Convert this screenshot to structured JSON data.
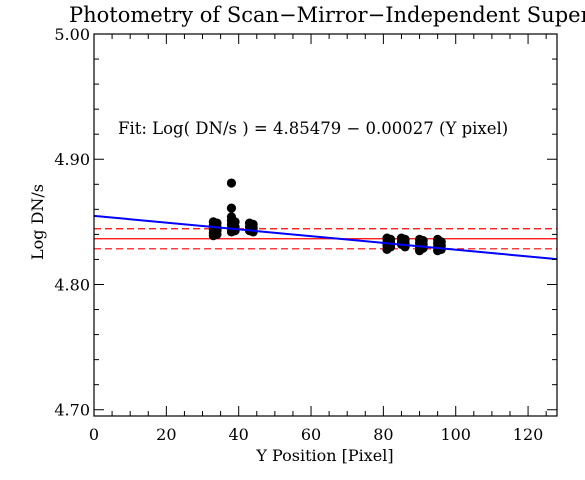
{
  "chart_data": {
    "type": "scatter",
    "title": "Photometry of Scan−Mirror−Independent Superflat",
    "xlabel": "Y Position [Pixel]",
    "ylabel": "Log DN/s",
    "xlim": [
      0,
      128
    ],
    "ylim": [
      4.695,
      5.0
    ],
    "x_ticks": [
      0,
      20,
      40,
      60,
      80,
      100,
      120
    ],
    "x_tick_labels": [
      "0",
      "20",
      "40",
      "60",
      "80",
      "100",
      "120"
    ],
    "y_ticks": [
      4.7,
      4.8,
      4.9,
      5.0
    ],
    "y_tick_labels": [
      "4.70",
      "4.80",
      "4.90",
      "5.00"
    ],
    "grid": false,
    "annotation": "Fit: Log( DN/s ) = 4.85479 − 0.00027 (Y pixel)",
    "fit_line": {
      "intercept": 4.85479,
      "slope": -0.00027,
      "color": "#0000ff"
    },
    "mean_line": {
      "y": 4.8365,
      "color": "#ff0000",
      "style": "solid"
    },
    "band_lines": {
      "y": [
        4.8445,
        4.8285
      ],
      "color": "#ff0000",
      "style": "dashed"
    },
    "series": [
      {
        "color": "#000000",
        "points": [
          [
            33,
            4.85
          ],
          [
            33,
            4.847
          ],
          [
            33,
            4.844
          ],
          [
            33,
            4.841
          ],
          [
            33,
            4.839
          ],
          [
            34,
            4.849
          ],
          [
            34,
            4.846
          ],
          [
            34,
            4.843
          ],
          [
            34,
            4.84
          ],
          [
            38,
            4.881
          ],
          [
            38,
            4.861
          ],
          [
            38,
            4.854
          ],
          [
            38,
            4.851
          ],
          [
            38,
            4.848
          ],
          [
            38,
            4.845
          ],
          [
            38,
            4.842
          ],
          [
            39,
            4.85
          ],
          [
            39,
            4.846
          ],
          [
            39,
            4.843
          ],
          [
            43,
            4.849
          ],
          [
            43,
            4.846
          ],
          [
            43,
            4.843
          ],
          [
            44,
            4.848
          ],
          [
            44,
            4.845
          ],
          [
            44,
            4.842
          ],
          [
            81,
            4.837
          ],
          [
            81,
            4.834
          ],
          [
            81,
            4.831
          ],
          [
            81,
            4.828
          ],
          [
            82,
            4.836
          ],
          [
            82,
            4.833
          ],
          [
            82,
            4.83
          ],
          [
            85,
            4.837
          ],
          [
            85,
            4.834
          ],
          [
            85,
            4.832
          ],
          [
            86,
            4.836
          ],
          [
            86,
            4.833
          ],
          [
            86,
            4.83
          ],
          [
            90,
            4.836
          ],
          [
            90,
            4.833
          ],
          [
            90,
            4.83
          ],
          [
            90,
            4.827
          ],
          [
            91,
            4.835
          ],
          [
            91,
            4.832
          ],
          [
            91,
            4.829
          ],
          [
            95,
            4.836
          ],
          [
            95,
            4.833
          ],
          [
            95,
            4.83
          ],
          [
            95,
            4.827
          ],
          [
            96,
            4.834
          ],
          [
            96,
            4.831
          ],
          [
            96,
            4.828
          ]
        ]
      }
    ]
  }
}
